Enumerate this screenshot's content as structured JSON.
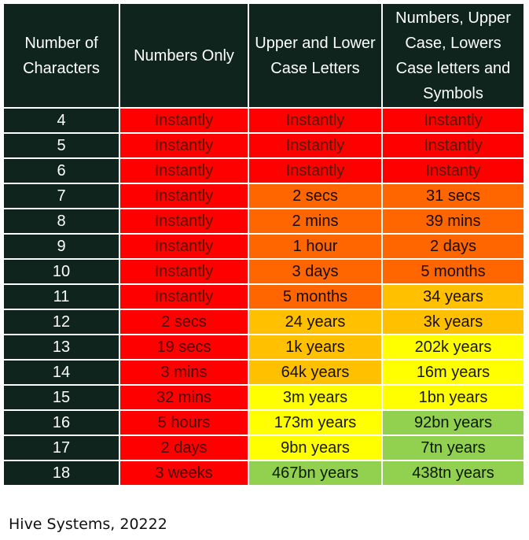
{
  "chart_data": {
    "type": "table",
    "headers": [
      "Number of Characters",
      "Numbers Only",
      "Upper and Lower Case Letters",
      "Numbers, Upper Case, Lowers Case letters and Symbols"
    ],
    "rows": [
      {
        "chars": "4",
        "cells": [
          "Instantly",
          "Instantly",
          "Instantly"
        ],
        "levels": [
          "red",
          "red",
          "red"
        ]
      },
      {
        "chars": "5",
        "cells": [
          "Instantly",
          "Instantly",
          "Instantly"
        ],
        "levels": [
          "red",
          "red",
          "red"
        ]
      },
      {
        "chars": "6",
        "cells": [
          "Instantly",
          "Instantly",
          "Instanty"
        ],
        "levels": [
          "red",
          "red",
          "red"
        ]
      },
      {
        "chars": "7",
        "cells": [
          "Instantly",
          "2 secs",
          "31 secs"
        ],
        "levels": [
          "red",
          "orange-d",
          "orange-d"
        ]
      },
      {
        "chars": "8",
        "cells": [
          "Instantly",
          "2 mins",
          "39 mins"
        ],
        "levels": [
          "red",
          "orange-d",
          "orange-d"
        ]
      },
      {
        "chars": "9",
        "cells": [
          "Instantly",
          "1 hour",
          "2 days"
        ],
        "levels": [
          "red",
          "orange-d",
          "orange-d"
        ]
      },
      {
        "chars": "10",
        "cells": [
          "Instantly",
          "3 days",
          "5 months"
        ],
        "levels": [
          "red",
          "orange-d",
          "orange-d"
        ]
      },
      {
        "chars": "11",
        "cells": [
          "Instantly",
          "5 months",
          "34 years"
        ],
        "levels": [
          "red",
          "orange-d",
          "amber"
        ]
      },
      {
        "chars": "12",
        "cells": [
          "2 secs",
          "24 years",
          "3k years"
        ],
        "levels": [
          "red",
          "amber",
          "amber"
        ]
      },
      {
        "chars": "13",
        "cells": [
          "19 secs",
          "1k years",
          "202k years"
        ],
        "levels": [
          "red",
          "amber",
          "yellow"
        ]
      },
      {
        "chars": "14",
        "cells": [
          "3 mins",
          "64k years",
          "16m years"
        ],
        "levels": [
          "red",
          "amber",
          "yellow"
        ]
      },
      {
        "chars": "15",
        "cells": [
          "32 mins",
          "3m years",
          "1bn years"
        ],
        "levels": [
          "red",
          "yellow",
          "yellow"
        ]
      },
      {
        "chars": "16",
        "cells": [
          "5 hours",
          "173m years",
          "92bn years"
        ],
        "levels": [
          "red",
          "yellow",
          "green"
        ]
      },
      {
        "chars": "17",
        "cells": [
          "2 days",
          "9bn years",
          "7tn years"
        ],
        "levels": [
          "red",
          "yellow",
          "green"
        ]
      },
      {
        "chars": "18",
        "cells": [
          "3 weeks",
          "467bn years",
          "438tn years"
        ],
        "levels": [
          "red",
          "green",
          "green"
        ]
      }
    ],
    "colors": {
      "header_bg": "#0e241c",
      "red": "#ff0000",
      "orange": "#ff6600",
      "amber": "#ffc000",
      "yellow": "#ffff00",
      "green": "#92d050"
    }
  },
  "source": "Hive Systems, 20222"
}
